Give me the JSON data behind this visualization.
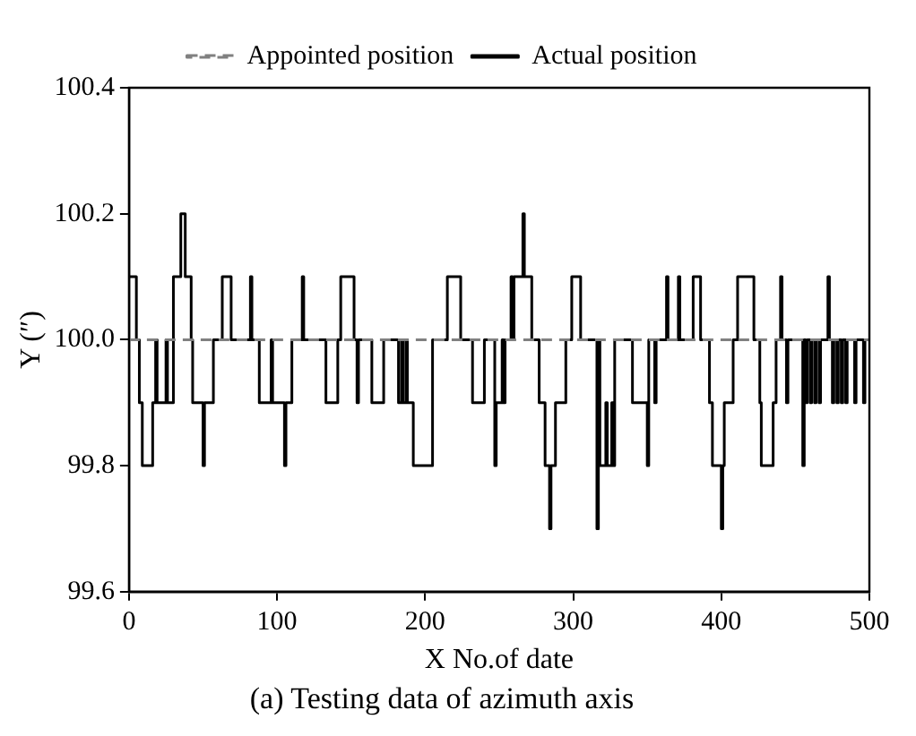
{
  "chart_data": {
    "type": "line",
    "title": "(a) Testing data of azimuth axis",
    "xlabel": "X No.of date",
    "ylabel": "Y (″)",
    "xlim": [
      0,
      500
    ],
    "xticks": [
      0,
      100,
      200,
      300,
      400,
      500
    ],
    "ylim": [
      99.6,
      100.4
    ],
    "yticks": [
      99.6,
      99.8,
      {
        "value": 100,
        "label": "100.0"
      },
      100.2,
      100.4
    ],
    "grid": false,
    "legend": "top",
    "marker": "none",
    "series": [
      {
        "name": "Appointed position",
        "line_style": "dashed",
        "color": "#808080",
        "x": [
          0,
          500
        ],
        "values": [
          100,
          100
        ]
      },
      {
        "name": "Actual position",
        "type": "step",
        "line_style": "solid",
        "color": "#000000",
        "x": [
          0,
          5,
          7,
          9,
          16,
          18,
          19,
          25,
          26,
          30,
          35,
          38,
          42,
          43,
          50,
          51,
          57,
          63,
          69,
          82,
          83,
          88,
          96,
          97,
          105,
          106,
          110,
          117,
          118,
          133,
          141,
          143,
          152,
          154,
          155,
          164,
          172,
          182,
          184,
          185,
          187,
          188,
          192,
          205,
          215,
          224,
          232,
          240,
          247,
          248,
          249,
          252,
          253,
          254,
          258,
          259,
          260,
          266,
          267,
          272,
          277,
          281,
          284,
          285,
          288,
          295,
          299,
          305,
          316,
          317,
          318,
          320,
          322,
          323,
          326,
          327,
          328,
          330,
          340,
          350,
          351,
          355,
          356,
          363,
          364,
          371,
          372,
          381,
          386,
          392,
          394,
          400,
          401,
          402,
          408,
          411,
          422,
          426,
          427,
          435,
          437,
          440,
          441,
          444,
          445,
          455,
          456,
          457,
          458,
          460,
          461,
          463,
          464,
          466,
          467,
          472,
          473,
          475,
          476,
          478,
          479,
          481,
          482,
          484,
          485,
          490,
          491,
          496,
          497,
          500
        ],
        "values": [
          100.1,
          100,
          99.9,
          99.8,
          99.9,
          100,
          99.9,
          100,
          99.9,
          100.1,
          100.2,
          100.1,
          100,
          99.9,
          99.8,
          99.9,
          100,
          100.1,
          100,
          100.1,
          100,
          99.9,
          100,
          99.9,
          99.8,
          99.9,
          100,
          100.1,
          100,
          99.9,
          100,
          100.1,
          100,
          99.9,
          100,
          99.9,
          100,
          99.9,
          100,
          99.9,
          100,
          99.9,
          99.8,
          100,
          100.1,
          100,
          99.9,
          100,
          99.8,
          99.9,
          99.9,
          100,
          99.9,
          100,
          100.1,
          100,
          100.1,
          100.2,
          100.1,
          100,
          99.9,
          99.8,
          99.7,
          99.8,
          99.9,
          100,
          100.1,
          100,
          99.7,
          100,
          99.8,
          99.8,
          99.9,
          99.8,
          99.9,
          99.8,
          100,
          100,
          99.9,
          99.8,
          100,
          99.9,
          100,
          100.1,
          100,
          100.1,
          100,
          100.1,
          100,
          99.9,
          99.8,
          99.7,
          99.8,
          99.9,
          100,
          100.1,
          100,
          99.9,
          99.8,
          99.9,
          100,
          100.1,
          100,
          99.9,
          100,
          99.8,
          100,
          99.9,
          100,
          99.9,
          100,
          99.9,
          100,
          99.9,
          100,
          100.1,
          100,
          99.9,
          100,
          99.9,
          100,
          99.9,
          100,
          99.9,
          100,
          99.9,
          100,
          99.9,
          100,
          100
        ]
      }
    ]
  }
}
